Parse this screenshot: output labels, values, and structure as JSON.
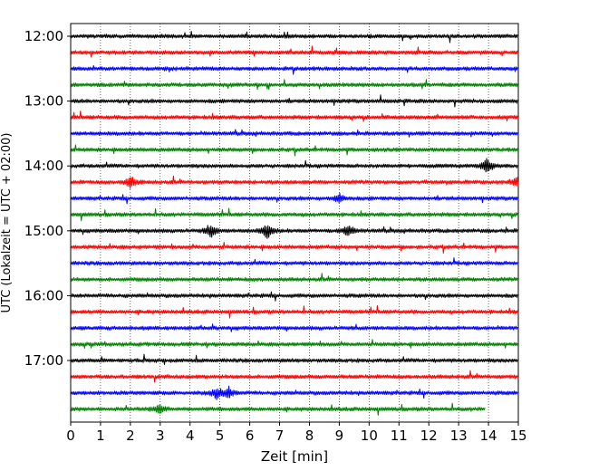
{
  "chart_data": {
    "type": "line",
    "title": "",
    "xlabel": "Zeit  [min]",
    "ylabel": "UTC (Lokalzeit = UTC + 02:00)",
    "xlim": [
      0,
      15
    ],
    "x_ticks": [
      "0",
      "1",
      "2",
      "3",
      "4",
      "5",
      "6",
      "7",
      "8",
      "9",
      "10",
      "11",
      "12",
      "13",
      "14",
      "15"
    ],
    "y_ticks": [
      "12:00",
      "13:00",
      "14:00",
      "15:00",
      "16:00",
      "17:00"
    ],
    "grid": "vertical dotted",
    "colors": [
      "#000000",
      "#ff0000",
      "#0000ff",
      "#008000"
    ],
    "traces": [
      {
        "start": "12:00",
        "color": "#000000",
        "end_min": 15
      },
      {
        "start": "12:15",
        "color": "#ff0000",
        "end_min": 15
      },
      {
        "start": "12:30",
        "color": "#0000ff",
        "end_min": 15
      },
      {
        "start": "12:45",
        "color": "#008000",
        "end_min": 15
      },
      {
        "start": "13:00",
        "color": "#000000",
        "end_min": 15
      },
      {
        "start": "13:15",
        "color": "#ff0000",
        "end_min": 15
      },
      {
        "start": "13:30",
        "color": "#0000ff",
        "end_min": 15
      },
      {
        "start": "13:45",
        "color": "#008000",
        "end_min": 15
      },
      {
        "start": "14:00",
        "color": "#000000",
        "end_min": 15
      },
      {
        "start": "14:15",
        "color": "#ff0000",
        "end_min": 15
      },
      {
        "start": "14:30",
        "color": "#0000ff",
        "end_min": 15
      },
      {
        "start": "14:45",
        "color": "#008000",
        "end_min": 15
      },
      {
        "start": "15:00",
        "color": "#000000",
        "end_min": 15
      },
      {
        "start": "15:15",
        "color": "#ff0000",
        "end_min": 15
      },
      {
        "start": "15:30",
        "color": "#0000ff",
        "end_min": 15
      },
      {
        "start": "15:45",
        "color": "#008000",
        "end_min": 15
      },
      {
        "start": "16:00",
        "color": "#000000",
        "end_min": 15
      },
      {
        "start": "16:15",
        "color": "#ff0000",
        "end_min": 15
      },
      {
        "start": "16:30",
        "color": "#0000ff",
        "end_min": 15
      },
      {
        "start": "16:45",
        "color": "#008000",
        "end_min": 15
      },
      {
        "start": "17:00",
        "color": "#000000",
        "end_min": 15
      },
      {
        "start": "17:15",
        "color": "#ff0000",
        "end_min": 15
      },
      {
        "start": "17:30",
        "color": "#0000ff",
        "end_min": 15
      },
      {
        "start": "17:45",
        "color": "#008000",
        "end_min": 13.9
      }
    ],
    "events": [
      {
        "trace": "14:00",
        "minute": 13.95,
        "amplitude": 1.0
      },
      {
        "trace": "14:15",
        "minute": 2.0,
        "amplitude": 0.8
      },
      {
        "trace": "14:15",
        "minute": 15.0,
        "amplitude": 0.9
      },
      {
        "trace": "15:00",
        "minute": 4.7,
        "amplitude": 0.8
      },
      {
        "trace": "15:00",
        "minute": 6.6,
        "amplitude": 1.0
      },
      {
        "trace": "15:00",
        "minute": 9.3,
        "amplitude": 0.8
      },
      {
        "trace": "17:30",
        "minute": 4.9,
        "amplitude": 0.7
      },
      {
        "trace": "17:30",
        "minute": 5.3,
        "amplitude": 0.6
      },
      {
        "trace": "17:45",
        "minute": 3.0,
        "amplitude": 0.6
      },
      {
        "trace": "14:30",
        "minute": 9.0,
        "amplitude": 0.5
      }
    ]
  }
}
